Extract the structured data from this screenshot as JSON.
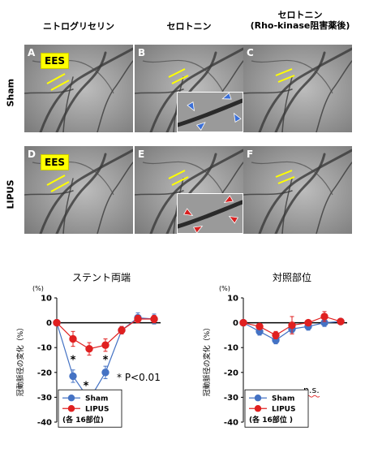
{
  "figure": {
    "columns": [
      {
        "label": "ニトログリセリン"
      },
      {
        "label": "セロトニン"
      },
      {
        "label": "セロトニン\n(Rho-kinase阻害薬後)"
      }
    ],
    "rows": [
      {
        "label": "Sham"
      },
      {
        "label": "LIPUS"
      }
    ],
    "panels": [
      {
        "letter": "A",
        "ees": "EES"
      },
      {
        "letter": "B"
      },
      {
        "letter": "C"
      },
      {
        "letter": "D",
        "ees": "EES"
      },
      {
        "letter": "E"
      },
      {
        "letter": "F"
      }
    ],
    "colors": {
      "ees_marker": "#ffff00",
      "arrow_sham": "#3a6fd8",
      "arrow_lipus": "#d82020"
    }
  },
  "chart_data": [
    {
      "type": "line",
      "title": "ステント両端",
      "ylabel": "冠動脈径の変化（%）",
      "yunit": "(%)",
      "ylim": [
        -40,
        10
      ],
      "yticks": [
        10,
        0,
        -10,
        -20,
        -30,
        -40
      ],
      "x": [
        1,
        2,
        3,
        4,
        5,
        6,
        7
      ],
      "series": [
        {
          "name": "Sham",
          "color": "#4472c4",
          "values": [
            0,
            -21.5,
            -31,
            -20,
            -3,
            2,
            1.5
          ],
          "errors": [
            0,
            2.5,
            2.5,
            2.5,
            1.5,
            2,
            2
          ]
        },
        {
          "name": "LIPUS",
          "color": "#e02020",
          "values": [
            0,
            -6.5,
            -10.5,
            -9,
            -3,
            1.5,
            1.5
          ],
          "errors": [
            0,
            3,
            2.5,
            2.5,
            1.5,
            1.5,
            1.5
          ]
        }
      ],
      "annotations": [
        "*",
        "*",
        "*",
        "* P<0.01"
      ],
      "legend_note": "(各 16部位)"
    },
    {
      "type": "line",
      "title": "対照部位",
      "ylabel": "冠動脈径の変化（%）",
      "yunit": "(%)",
      "ylim": [
        -40,
        10
      ],
      "yticks": [
        10,
        0,
        -10,
        -20,
        -30,
        -40
      ],
      "x": [
        1,
        2,
        3,
        4,
        5,
        6,
        7
      ],
      "series": [
        {
          "name": "Sham",
          "color": "#4472c4",
          "values": [
            0,
            -3.5,
            -7,
            -2.5,
            -1.5,
            0,
            0.5
          ],
          "errors": [
            0,
            1.5,
            1.5,
            1.5,
            1.5,
            1.5,
            1
          ]
        },
        {
          "name": "LIPUS",
          "color": "#e02020",
          "values": [
            0,
            -1.5,
            -5,
            -1,
            0,
            2.5,
            0.5
          ],
          "errors": [
            0,
            1,
            1.5,
            3.5,
            1,
            2,
            1
          ]
        }
      ],
      "annotations": [
        "n.s."
      ],
      "legend_note": "(各 16部位 )"
    }
  ]
}
